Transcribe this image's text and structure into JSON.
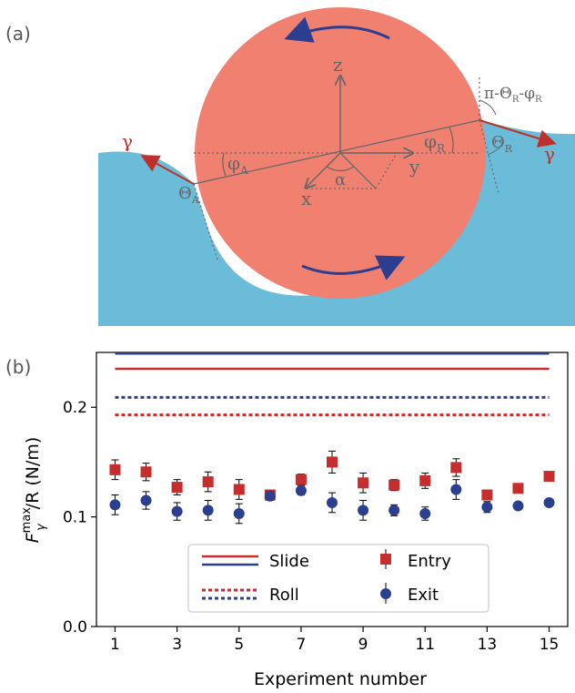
{
  "panel_a": {
    "label": "(a)",
    "axis_z": "z",
    "axis_y": "y",
    "axis_x": "x",
    "angle_alpha": "α",
    "gamma_left": "γ",
    "gamma_right": "γ",
    "theta_a": "Θ",
    "theta_a_sub": "A",
    "theta_r": "Θ",
    "theta_r_sub": "R",
    "phi_a": "φ",
    "phi_a_sub": "A",
    "phi_r": "φ",
    "phi_r_sub": "R",
    "top_right_expr_pi": "π-Θ",
    "top_right_expr_sub1": "R",
    "top_right_expr_mid": "-φ",
    "top_right_expr_sub2": "R",
    "colors": {
      "sphere": "#f08070",
      "liquid": "#6bbcd8",
      "arrow_blue": "#2c3e8f",
      "arrow_red": "#c0302a",
      "lines": "#666666"
    }
  },
  "panel_b": {
    "label": "(b)",
    "ylabel_main": "F",
    "ylabel_sub": "γ",
    "ylabel_sup": "max",
    "ylabel_rest": "/R (N/m)",
    "xlabel": "Experiment number",
    "legend": {
      "slide": "Slide",
      "roll": "Roll",
      "entry": "Entry",
      "exit": "Exit"
    },
    "colors": {
      "entry": "#c62d2d",
      "exit": "#2a3f8f"
    }
  },
  "chart_data": {
    "type": "scatter",
    "xlabel": "Experiment number",
    "ylabel": "F_γ^max/R (N/m)",
    "xlim": [
      0.4,
      15.6
    ],
    "ylim": [
      0,
      0.25
    ],
    "xticks": [
      1,
      3,
      5,
      7,
      9,
      11,
      13,
      15
    ],
    "yticks": [
      0.0,
      0.1,
      0.2
    ],
    "ytick_labels": [
      "0.0",
      "0.1",
      "0.2"
    ],
    "grid": false,
    "legend_position": "lower-center",
    "x": [
      1,
      2,
      3,
      4,
      5,
      6,
      7,
      8,
      9,
      10,
      11,
      12,
      13,
      14,
      15
    ],
    "series": [
      {
        "name": "Entry",
        "marker": "square",
        "color": "#c62d2d",
        "values": [
          0.143,
          0.141,
          0.127,
          0.132,
          0.125,
          0.12,
          0.134,
          0.15,
          0.131,
          0.129,
          0.133,
          0.145,
          0.12,
          0.126,
          0.137
        ],
        "errors": [
          0.009,
          0.008,
          0.007,
          0.009,
          0.009,
          0.004,
          0.005,
          0.01,
          0.009,
          0.005,
          0.007,
          0.008,
          0.004,
          0.0,
          0.0
        ]
      },
      {
        "name": "Exit",
        "marker": "circle",
        "color": "#2a3f8f",
        "values": [
          0.111,
          0.115,
          0.105,
          0.106,
          0.103,
          0.119,
          0.124,
          0.113,
          0.106,
          0.106,
          0.103,
          0.125,
          0.109,
          0.11,
          0.113
        ],
        "errors": [
          0.009,
          0.008,
          0.008,
          0.009,
          0.009,
          0.004,
          0.004,
          0.009,
          0.009,
          0.005,
          0.006,
          0.009,
          0.005,
          0.0,
          0.0
        ]
      }
    ],
    "reference_lines": [
      {
        "name": "Slide",
        "style": "solid",
        "color": "#2a3f8f",
        "y": 0.249
      },
      {
        "name": "Slide",
        "style": "solid",
        "color": "#c62d2d",
        "y": 0.235
      },
      {
        "name": "Roll",
        "style": "dotted",
        "color": "#2a3f8f",
        "y": 0.209
      },
      {
        "name": "Roll",
        "style": "dotted",
        "color": "#c62d2d",
        "y": 0.193
      }
    ]
  }
}
